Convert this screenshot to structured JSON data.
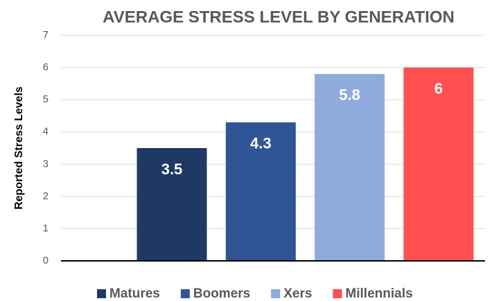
{
  "chart_data": {
    "type": "bar",
    "title": "AVERAGE STRESS LEVEL BY GENERATION",
    "y_label": "Reported Stress Levels",
    "categories": [
      null
    ],
    "series": [
      {
        "name": "Matures",
        "color": "#203864",
        "values": [
          3.5
        ]
      },
      {
        "name": "Boomers",
        "color": "#2f5597",
        "values": [
          4.3
        ]
      },
      {
        "name": "Xers",
        "color": "#8faadc",
        "values": [
          5.8
        ]
      },
      {
        "name": "Millennials",
        "color": "#ff4f4f",
        "values": [
          6
        ]
      }
    ],
    "ylim": [
      0,
      7
    ],
    "yticks": [
      0,
      1,
      2,
      3,
      4,
      5,
      6,
      7
    ],
    "grid": true,
    "legend": "bottom"
  }
}
